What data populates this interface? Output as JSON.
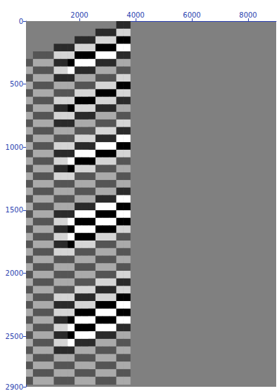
{
  "chart_data": {
    "type": "heatmap",
    "x_edges": [
      100,
      347,
      594,
      841,
      1088,
      1335,
      1582,
      1829,
      2076,
      2323,
      2570,
      2817,
      3064,
      3311,
      3558,
      3805
    ],
    "y_edges": [
      0,
      60,
      120,
      180,
      240,
      300,
      360,
      420,
      480,
      540,
      600,
      660,
      720,
      780,
      840,
      900,
      960,
      1020,
      1080,
      1140,
      1200,
      1260,
      1320,
      1380,
      1440,
      1500,
      1560,
      1620,
      1680,
      1740,
      1800,
      1860,
      1920,
      1980,
      2040,
      2100,
      2160,
      2220,
      2280,
      2340,
      2400,
      2460,
      2520,
      2580,
      2640,
      2700,
      2760,
      2820,
      2880
    ],
    "cells": [
      [
        0,
        0,
        0,
        0,
        0,
        0,
        0,
        0,
        0,
        0,
        0,
        0,
        0,
        2,
        2
      ],
      [
        0,
        0,
        0,
        0,
        0,
        0,
        0,
        0,
        0,
        0,
        2,
        2,
        2,
        -2,
        -2
      ],
      [
        0,
        0,
        0,
        0,
        0,
        0,
        0,
        2,
        2,
        2,
        -2,
        -2,
        -2,
        3,
        3
      ],
      [
        0,
        0,
        0,
        0,
        2,
        2,
        2,
        -2,
        -2,
        -2,
        3,
        3,
        3,
        -3,
        -3
      ],
      [
        0,
        1,
        1,
        1,
        -2,
        -2,
        -2,
        3,
        3,
        3,
        -3,
        -3,
        -3,
        2,
        2
      ],
      [
        1,
        -1,
        -1,
        -1,
        2,
        2,
        3,
        -3,
        -3,
        -3,
        2,
        2,
        2,
        -1,
        -1
      ],
      [
        -1,
        1,
        1,
        1,
        -2,
        -2,
        -3,
        2,
        2,
        2,
        -1,
        -1,
        -1,
        1,
        1
      ],
      [
        1,
        -1,
        -1,
        -1,
        2,
        2,
        2,
        -1,
        -1,
        -1,
        1,
        1,
        1,
        -2,
        -2
      ],
      [
        -1,
        1,
        1,
        1,
        -1,
        -1,
        -1,
        1,
        1,
        1,
        -2,
        -2,
        -2,
        3,
        3
      ],
      [
        1,
        -1,
        -1,
        -1,
        1,
        1,
        1,
        -2,
        -2,
        -2,
        3,
        3,
        3,
        -2,
        -2
      ],
      [
        -1,
        1,
        1,
        1,
        -2,
        -2,
        -2,
        3,
        3,
        3,
        -2,
        -2,
        -2,
        2,
        2
      ],
      [
        1,
        -1,
        -1,
        -1,
        2,
        2,
        3,
        -2,
        -2,
        -2,
        2,
        2,
        2,
        -1,
        -1
      ],
      [
        -1,
        1,
        1,
        1,
        -2,
        -2,
        -2,
        2,
        2,
        2,
        -1,
        -1,
        -1,
        1,
        1
      ],
      [
        1,
        -1,
        -1,
        -1,
        2,
        2,
        2,
        -1,
        -1,
        -1,
        1,
        1,
        1,
        -2,
        -2
      ],
      [
        -1,
        1,
        1,
        1,
        -1,
        -1,
        -1,
        1,
        1,
        1,
        -2,
        -2,
        -2,
        2,
        2
      ],
      [
        1,
        -1,
        -1,
        -1,
        1,
        1,
        1,
        -2,
        -2,
        -2,
        2,
        2,
        2,
        -3,
        -3
      ],
      [
        -1,
        1,
        1,
        1,
        -2,
        -2,
        -2,
        2,
        2,
        2,
        -3,
        -3,
        -3,
        3,
        3
      ],
      [
        1,
        -1,
        -1,
        -1,
        2,
        2,
        2,
        -3,
        -3,
        -3,
        3,
        3,
        3,
        -2,
        -2
      ],
      [
        -1,
        1,
        1,
        1,
        -2,
        -2,
        -3,
        3,
        3,
        3,
        -2,
        -2,
        -2,
        1,
        1
      ],
      [
        1,
        -1,
        -1,
        -1,
        2,
        2,
        3,
        -2,
        -2,
        -2,
        1,
        1,
        1,
        -1,
        -1
      ],
      [
        -1,
        1,
        1,
        1,
        -2,
        -2,
        -2,
        1,
        1,
        1,
        -1,
        -1,
        -1,
        1,
        1
      ],
      [
        1,
        -1,
        -1,
        -1,
        1,
        1,
        1,
        -1,
        -1,
        -1,
        1,
        1,
        1,
        -1,
        -1
      ],
      [
        -1,
        1,
        1,
        1,
        -1,
        -1,
        -1,
        1,
        1,
        1,
        -1,
        -1,
        -1,
        2,
        2
      ],
      [
        1,
        -1,
        -1,
        -1,
        1,
        1,
        1,
        -1,
        -1,
        -1,
        2,
        2,
        2,
        -3,
        -3
      ],
      [
        -1,
        1,
        1,
        1,
        -1,
        -1,
        -1,
        2,
        2,
        2,
        -3,
        -3,
        -3,
        3,
        3
      ],
      [
        1,
        -1,
        -1,
        -1,
        2,
        2,
        2,
        -3,
        -3,
        -3,
        3,
        3,
        3,
        -3,
        -3
      ],
      [
        -1,
        1,
        1,
        1,
        -2,
        -2,
        -3,
        3,
        3,
        3,
        -3,
        -3,
        -3,
        3,
        3
      ],
      [
        1,
        -1,
        -1,
        -1,
        2,
        2,
        3,
        -3,
        -3,
        -3,
        3,
        3,
        3,
        -2,
        -2
      ],
      [
        -1,
        1,
        1,
        1,
        -2,
        -2,
        -3,
        3,
        3,
        3,
        -2,
        -2,
        -2,
        1,
        1
      ],
      [
        1,
        -1,
        -1,
        -1,
        2,
        2,
        3,
        -2,
        -2,
        -2,
        1,
        1,
        1,
        -1,
        -1
      ],
      [
        -1,
        1,
        1,
        1,
        -2,
        -2,
        -2,
        1,
        1,
        1,
        -1,
        -1,
        -1,
        1,
        1
      ],
      [
        1,
        -1,
        -1,
        -1,
        1,
        1,
        1,
        -1,
        -1,
        -1,
        1,
        1,
        1,
        -1,
        -1
      ],
      [
        -1,
        1,
        1,
        1,
        -1,
        -1,
        -1,
        1,
        1,
        1,
        -1,
        -1,
        -1,
        1,
        1
      ],
      [
        1,
        -1,
        -1,
        -1,
        1,
        1,
        1,
        -1,
        -1,
        -1,
        1,
        1,
        1,
        -2,
        -2
      ],
      [
        -1,
        1,
        1,
        1,
        -1,
        -1,
        -1,
        1,
        1,
        1,
        -2,
        -2,
        -2,
        2,
        2
      ],
      [
        1,
        -1,
        -1,
        -1,
        1,
        1,
        1,
        -2,
        -2,
        -2,
        2,
        2,
        2,
        -2,
        -2
      ],
      [
        -1,
        1,
        1,
        1,
        -2,
        -2,
        -2,
        2,
        2,
        2,
        -2,
        -2,
        -2,
        3,
        3
      ],
      [
        1,
        -1,
        -1,
        -1,
        2,
        2,
        2,
        -2,
        -2,
        -2,
        3,
        3,
        3,
        -3,
        -3
      ],
      [
        -1,
        1,
        1,
        1,
        -2,
        -2,
        -2,
        3,
        3,
        3,
        -3,
        -3,
        -3,
        3,
        3
      ],
      [
        1,
        -1,
        -1,
        -1,
        2,
        2,
        3,
        -3,
        -3,
        -3,
        3,
        3,
        3,
        -3,
        -3
      ],
      [
        -1,
        1,
        1,
        1,
        -2,
        -2,
        -3,
        3,
        3,
        3,
        -3,
        -3,
        -3,
        2,
        2
      ],
      [
        1,
        -1,
        -1,
        -1,
        2,
        2,
        3,
        -3,
        -3,
        -3,
        2,
        2,
        2,
        -1,
        -1
      ],
      [
        -1,
        1,
        1,
        1,
        -2,
        -2,
        -3,
        2,
        2,
        2,
        -1,
        -1,
        -1,
        1,
        1
      ],
      [
        1,
        -1,
        -1,
        -1,
        2,
        2,
        2,
        -1,
        -1,
        -1,
        1,
        1,
        1,
        -1,
        -1
      ],
      [
        -1,
        1,
        1,
        1,
        -1,
        -1,
        -1,
        1,
        1,
        1,
        -1,
        -1,
        -1,
        1,
        1
      ],
      [
        1,
        -1,
        -1,
        -1,
        1,
        1,
        1,
        -1,
        -1,
        -1,
        1,
        1,
        1,
        -1,
        -1
      ],
      [
        -1,
        1,
        1,
        1,
        -1,
        -1,
        -1,
        1,
        1,
        1,
        -1,
        -1,
        -1,
        1,
        1
      ],
      [
        1,
        -1,
        -1,
        -1,
        1,
        1,
        1,
        -1,
        -1,
        -1,
        1,
        1,
        1,
        -1,
        -1
      ]
    ],
    "color_range": [
      -3,
      3
    ],
    "xlim": [
      100,
      9000
    ],
    "xticks": [
      2000,
      4000,
      6000,
      8000
    ],
    "ylim": [
      0,
      2900
    ],
    "yticks": [
      0,
      500,
      1000,
      1500,
      2000,
      2500
    ],
    "grid": false
  }
}
